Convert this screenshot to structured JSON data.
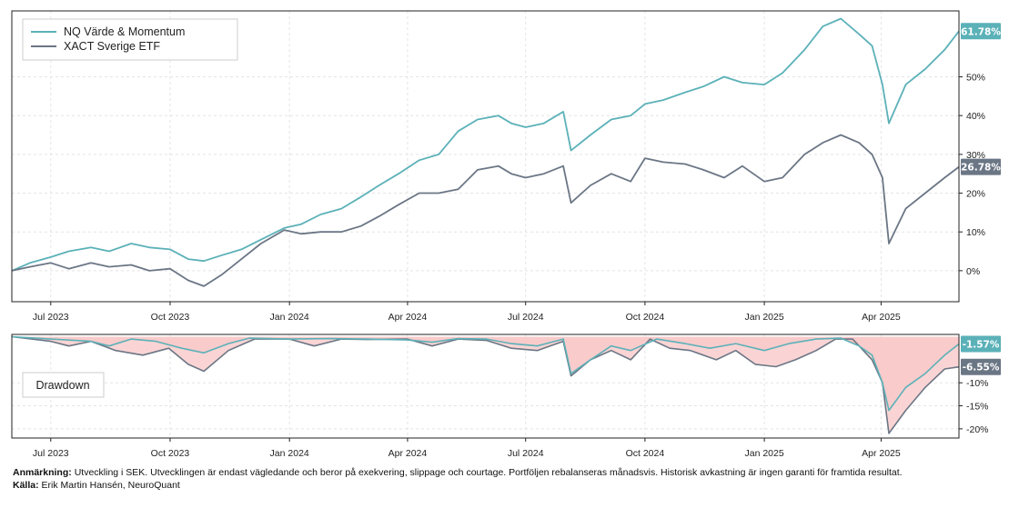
{
  "chart_data": [
    {
      "type": "line",
      "x_range": [
        "2023-06-01",
        "2025-05-31"
      ],
      "ylim": [
        -8,
        67
      ],
      "x_ticks": [
        "Jul 2023",
        "Oct 2023",
        "Jan 2024",
        "Apr 2024",
        "Jul 2024",
        "Oct 2024",
        "Jan 2025",
        "Apr 2025"
      ],
      "y_ticks": [
        "0%",
        "10%",
        "20%",
        "30%",
        "40%",
        "50%"
      ],
      "grid": true,
      "legend_placement": "top-left",
      "series": [
        {
          "name": "NQ Värde & Momentum",
          "color": "#5bb1b8",
          "end_label": "61.78%",
          "points": [
            [
              "2023-06-01",
              0
            ],
            [
              "2023-06-15",
              2
            ],
            [
              "2023-07-01",
              3.5
            ],
            [
              "2023-07-15",
              5
            ],
            [
              "2023-08-01",
              6
            ],
            [
              "2023-08-15",
              5
            ],
            [
              "2023-09-01",
              7
            ],
            [
              "2023-09-15",
              6
            ],
            [
              "2023-10-01",
              5.5
            ],
            [
              "2023-10-15",
              3
            ],
            [
              "2023-10-27",
              2.5
            ],
            [
              "2023-11-10",
              4
            ],
            [
              "2023-11-25",
              5.5
            ],
            [
              "2023-12-10",
              8
            ],
            [
              "2023-12-28",
              11
            ],
            [
              "2024-01-10",
              12
            ],
            [
              "2024-01-25",
              14.5
            ],
            [
              "2024-02-10",
              16
            ],
            [
              "2024-02-25",
              19
            ],
            [
              "2024-03-10",
              22
            ],
            [
              "2024-03-25",
              25
            ],
            [
              "2024-04-10",
              28.5
            ],
            [
              "2024-04-25",
              30
            ],
            [
              "2024-05-10",
              36
            ],
            [
              "2024-05-25",
              39
            ],
            [
              "2024-06-10",
              40
            ],
            [
              "2024-06-20",
              38
            ],
            [
              "2024-07-01",
              37
            ],
            [
              "2024-07-15",
              38
            ],
            [
              "2024-07-30",
              41
            ],
            [
              "2024-08-05",
              31
            ],
            [
              "2024-08-20",
              35
            ],
            [
              "2024-09-05",
              39
            ],
            [
              "2024-09-20",
              40
            ],
            [
              "2024-10-01",
              43
            ],
            [
              "2024-10-15",
              44
            ],
            [
              "2024-11-01",
              46
            ],
            [
              "2024-11-15",
              47.5
            ],
            [
              "2024-12-01",
              50
            ],
            [
              "2024-12-15",
              48.5
            ],
            [
              "2025-01-01",
              48
            ],
            [
              "2025-01-15",
              51
            ],
            [
              "2025-02-01",
              57
            ],
            [
              "2025-02-15",
              63
            ],
            [
              "2025-03-01",
              65
            ],
            [
              "2025-03-15",
              61
            ],
            [
              "2025-03-25",
              58
            ],
            [
              "2025-04-02",
              48
            ],
            [
              "2025-04-07",
              38
            ],
            [
              "2025-04-20",
              48
            ],
            [
              "2025-05-05",
              52
            ],
            [
              "2025-05-20",
              57
            ],
            [
              "2025-05-31",
              61.78
            ]
          ]
        },
        {
          "name": "XACT Sverige ETF",
          "color": "#6b7685",
          "end_label": "26.78%",
          "points": [
            [
              "2023-06-01",
              0
            ],
            [
              "2023-06-15",
              1
            ],
            [
              "2023-07-01",
              2
            ],
            [
              "2023-07-15",
              0.5
            ],
            [
              "2023-08-01",
              2
            ],
            [
              "2023-08-15",
              1
            ],
            [
              "2023-09-01",
              1.5
            ],
            [
              "2023-09-15",
              0
            ],
            [
              "2023-10-01",
              0.5
            ],
            [
              "2023-10-15",
              -2.5
            ],
            [
              "2023-10-27",
              -4
            ],
            [
              "2023-11-10",
              -1
            ],
            [
              "2023-11-25",
              3
            ],
            [
              "2023-12-10",
              7
            ],
            [
              "2023-12-28",
              10.5
            ],
            [
              "2024-01-10",
              9.5
            ],
            [
              "2024-01-25",
              10
            ],
            [
              "2024-02-10",
              10
            ],
            [
              "2024-02-25",
              11.5
            ],
            [
              "2024-03-10",
              14
            ],
            [
              "2024-03-25",
              17
            ],
            [
              "2024-04-10",
              20
            ],
            [
              "2024-04-25",
              20
            ],
            [
              "2024-05-10",
              21
            ],
            [
              "2024-05-25",
              26
            ],
            [
              "2024-06-10",
              27
            ],
            [
              "2024-06-20",
              25
            ],
            [
              "2024-07-01",
              24
            ],
            [
              "2024-07-15",
              25
            ],
            [
              "2024-07-30",
              27
            ],
            [
              "2024-08-05",
              17.5
            ],
            [
              "2024-08-20",
              22
            ],
            [
              "2024-09-05",
              25
            ],
            [
              "2024-09-20",
              23
            ],
            [
              "2024-10-01",
              29
            ],
            [
              "2024-10-15",
              28
            ],
            [
              "2024-11-01",
              27.5
            ],
            [
              "2024-11-15",
              26
            ],
            [
              "2024-12-01",
              24
            ],
            [
              "2024-12-15",
              27
            ],
            [
              "2025-01-01",
              23
            ],
            [
              "2025-01-15",
              24
            ],
            [
              "2025-02-01",
              30
            ],
            [
              "2025-02-15",
              33
            ],
            [
              "2025-03-01",
              35
            ],
            [
              "2025-03-15",
              33
            ],
            [
              "2025-03-25",
              30
            ],
            [
              "2025-04-02",
              24
            ],
            [
              "2025-04-07",
              7
            ],
            [
              "2025-04-20",
              16
            ],
            [
              "2025-05-05",
              20
            ],
            [
              "2025-05-20",
              24
            ],
            [
              "2025-05-31",
              26.78
            ]
          ]
        }
      ]
    },
    {
      "type": "area",
      "legend_label": "Drawdown",
      "legend_placement": "left",
      "ylim": [
        -22,
        0.5
      ],
      "x_ticks": [
        "Jul 2023",
        "Oct 2023",
        "Jan 2024",
        "Apr 2024",
        "Jul 2024",
        "Oct 2024",
        "Jan 2025",
        "Apr 2025"
      ],
      "y_ticks": [
        "-10%",
        "-15%",
        "-20%"
      ],
      "grid": true,
      "fill_colors": [
        "#f7b4b4",
        "#f9cdcd"
      ],
      "series": [
        {
          "name": "NQ Värde & Momentum",
          "color": "#5bb1b8",
          "end_label": "-1.57%",
          "points": [
            [
              "2023-06-01",
              0
            ],
            [
              "2023-07-01",
              -0.5
            ],
            [
              "2023-08-01",
              -1
            ],
            [
              "2023-08-15",
              -2
            ],
            [
              "2023-09-01",
              -0.5
            ],
            [
              "2023-09-20",
              -1
            ],
            [
              "2023-10-10",
              -2.5
            ],
            [
              "2023-10-27",
              -3.5
            ],
            [
              "2023-11-15",
              -1.5
            ],
            [
              "2023-12-01",
              -0.3
            ],
            [
              "2024-01-01",
              -0.5
            ],
            [
              "2024-02-01",
              -0.4
            ],
            [
              "2024-03-01",
              -0.5
            ],
            [
              "2024-04-01",
              -0.7
            ],
            [
              "2024-04-20",
              -1.2
            ],
            [
              "2024-05-10",
              -0.4
            ],
            [
              "2024-06-01",
              -0.5
            ],
            [
              "2024-06-20",
              -1.5
            ],
            [
              "2024-07-10",
              -2
            ],
            [
              "2024-07-30",
              -0.5
            ],
            [
              "2024-08-05",
              -8
            ],
            [
              "2024-08-20",
              -5
            ],
            [
              "2024-09-05",
              -2
            ],
            [
              "2024-09-20",
              -3
            ],
            [
              "2024-10-10",
              -0.5
            ],
            [
              "2024-11-01",
              -1.5
            ],
            [
              "2024-11-20",
              -2.5
            ],
            [
              "2024-12-10",
              -1.5
            ],
            [
              "2025-01-01",
              -3
            ],
            [
              "2025-01-20",
              -1.5
            ],
            [
              "2025-02-10",
              -0.5
            ],
            [
              "2025-03-01",
              -0.3
            ],
            [
              "2025-03-15",
              -2
            ],
            [
              "2025-03-25",
              -4
            ],
            [
              "2025-04-02",
              -10
            ],
            [
              "2025-04-07",
              -16
            ],
            [
              "2025-04-20",
              -11
            ],
            [
              "2025-05-05",
              -8
            ],
            [
              "2025-05-20",
              -4
            ],
            [
              "2025-05-31",
              -1.57
            ]
          ]
        },
        {
          "name": "XACT Sverige ETF",
          "color": "#6b7685",
          "end_label": "-6.55%",
          "points": [
            [
              "2023-06-01",
              0
            ],
            [
              "2023-07-01",
              -1
            ],
            [
              "2023-07-15",
              -2
            ],
            [
              "2023-08-01",
              -1
            ],
            [
              "2023-08-20",
              -3
            ],
            [
              "2023-09-10",
              -4
            ],
            [
              "2023-09-30",
              -2.5
            ],
            [
              "2023-10-15",
              -6
            ],
            [
              "2023-10-27",
              -7.5
            ],
            [
              "2023-11-15",
              -3
            ],
            [
              "2023-12-05",
              -0.5
            ],
            [
              "2024-01-01",
              -0.5
            ],
            [
              "2024-01-20",
              -2
            ],
            [
              "2024-02-10",
              -0.5
            ],
            [
              "2024-03-01",
              -0.6
            ],
            [
              "2024-04-01",
              -0.5
            ],
            [
              "2024-04-20",
              -2
            ],
            [
              "2024-05-10",
              -0.5
            ],
            [
              "2024-06-01",
              -0.8
            ],
            [
              "2024-06-20",
              -2.5
            ],
            [
              "2024-07-10",
              -3
            ],
            [
              "2024-07-30",
              -1
            ],
            [
              "2024-08-05",
              -8.5
            ],
            [
              "2024-08-20",
              -5
            ],
            [
              "2024-09-05",
              -3
            ],
            [
              "2024-09-20",
              -5
            ],
            [
              "2024-10-05",
              -0.5
            ],
            [
              "2024-10-20",
              -2.5
            ],
            [
              "2024-11-05",
              -3
            ],
            [
              "2024-11-25",
              -5
            ],
            [
              "2024-12-10",
              -3
            ],
            [
              "2024-12-25",
              -6
            ],
            [
              "2025-01-10",
              -6.5
            ],
            [
              "2025-01-25",
              -5
            ],
            [
              "2025-02-10",
              -3
            ],
            [
              "2025-02-25",
              -0.5
            ],
            [
              "2025-03-10",
              -0.5
            ],
            [
              "2025-03-25",
              -5
            ],
            [
              "2025-04-02",
              -10
            ],
            [
              "2025-04-07",
              -21
            ],
            [
              "2025-04-20",
              -16
            ],
            [
              "2025-05-05",
              -11
            ],
            [
              "2025-05-20",
              -7
            ],
            [
              "2025-05-31",
              -6.55
            ]
          ]
        }
      ]
    }
  ],
  "footnote": {
    "label": "Anmärkning:",
    "text": "Utveckling i SEK. Utvecklingen är endast vägledande och beror på exekvering, slippage och courtage. Portföljen rebalanseras månadsvis. Historisk avkastning är ingen garanti för framtida resultat."
  },
  "source": {
    "label": "Källa:",
    "text": "Erik Martin Hansén, NeuroQuant"
  }
}
